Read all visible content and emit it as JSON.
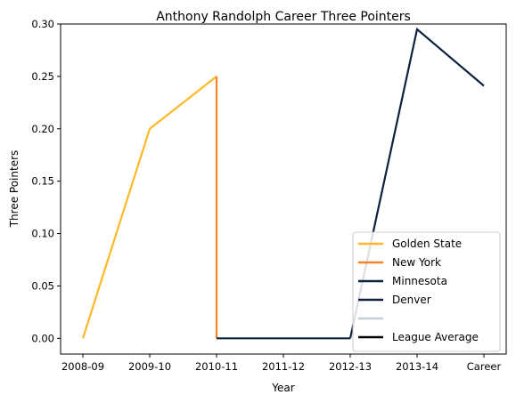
{
  "chart_data": {
    "type": "line",
    "title": "Anthony Randolph Career Three Pointers",
    "xlabel": "Year",
    "ylabel": "Three Pointers",
    "categories": [
      "2008-09",
      "2009-10",
      "2010-11",
      "2011-12",
      "2012-13",
      "2013-14",
      "Career"
    ],
    "yticks": [
      "0.00",
      "0.05",
      "0.10",
      "0.15",
      "0.20",
      "0.25",
      "0.30"
    ],
    "ylim": [
      -0.015,
      0.3
    ],
    "grid": false,
    "legend_position": "lower-right",
    "series": [
      {
        "name": "Golden State",
        "color": "#fdb927",
        "points": [
          {
            "x": "2008-09",
            "y": 0.0
          },
          {
            "x": "2009-10",
            "y": 0.2
          },
          {
            "x": "2010-11",
            "y": 0.25
          }
        ]
      },
      {
        "name": "New York",
        "color": "#f58426",
        "points": [
          {
            "x": "2010-11",
            "y": 0.25
          },
          {
            "x": "2010-11",
            "y": 0.0
          }
        ]
      },
      {
        "name": "Minnesota",
        "color": "#0c2340",
        "points": [
          {
            "x": "2010-11",
            "y": 0.0
          },
          {
            "x": "2011-12",
            "y": 0.0
          },
          {
            "x": "2012-13",
            "y": 0.0
          }
        ]
      },
      {
        "name": "Denver",
        "color": "#0e2240",
        "points": [
          {
            "x": "2012-13",
            "y": 0.0
          },
          {
            "x": "2013-14",
            "y": 0.295
          },
          {
            "x": "Career",
            "y": 0.241
          }
        ]
      }
    ],
    "legend": [
      {
        "label": "Golden State",
        "color": "#fdb927"
      },
      {
        "label": "New York",
        "color": "#f58426"
      },
      {
        "label": "Minnesota",
        "color": "#0c2340"
      },
      {
        "label": "Denver",
        "color": "#0e2240"
      },
      {
        "label": "",
        "color": "#c4ced4"
      },
      {
        "label": "League Average",
        "color": "#000000"
      }
    ]
  }
}
